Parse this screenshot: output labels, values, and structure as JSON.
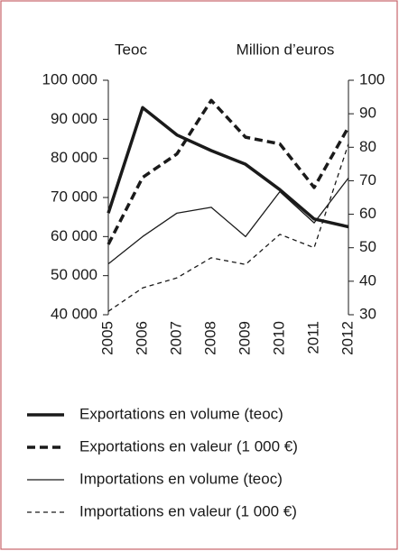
{
  "chart_data": {
    "type": "line",
    "y_label": "Teoc",
    "y2_label": "Million d’euros",
    "categories": [
      "2005",
      "2006",
      "2007",
      "2008",
      "2009",
      "2010",
      "2011",
      "2012"
    ],
    "ylim": [
      40000,
      100000
    ],
    "yticks": [
      {
        "value": 40000,
        "label": "40 000"
      },
      {
        "value": 50000,
        "label": "50 000"
      },
      {
        "value": 60000,
        "label": "60 000"
      },
      {
        "value": 70000,
        "label": "70 000"
      },
      {
        "value": 80000,
        "label": "80 000"
      },
      {
        "value": 90000,
        "label": "90 000"
      },
      {
        "value": 100000,
        "label": "100 000"
      }
    ],
    "y2lim": [
      30,
      100
    ],
    "y2ticks": [
      30,
      40,
      50,
      60,
      70,
      80,
      90,
      100
    ],
    "series": [
      {
        "name": "Exportations en volume (teoc)",
        "color": "#1a1a1a",
        "line_style": "solid",
        "bold": true,
        "values": [
          66000,
          93000,
          86000,
          82000,
          78500,
          72000,
          64500,
          62500
        ]
      },
      {
        "name": "Exportations en valeur (1 000 €)",
        "color": "#1a1a1a",
        "line_style": "dashed",
        "bold": true,
        "axis": "y2",
        "values": [
          51,
          71,
          78,
          94,
          83,
          81,
          68,
          86
        ]
      },
      {
        "name": "Importations en volume (teoc)",
        "color": "#1a1a1a",
        "line_style": "solid",
        "bold": false,
        "values": [
          53000,
          60000,
          66000,
          67500,
          60000,
          71500,
          63500,
          75000
        ]
      },
      {
        "name": "Importations en valeur (1 000 €)",
        "color": "#1a1a1a",
        "line_style": "dashed",
        "bold": false,
        "axis": "y2",
        "values": [
          31,
          38,
          41,
          47,
          45,
          54,
          50,
          81
        ]
      }
    ]
  }
}
